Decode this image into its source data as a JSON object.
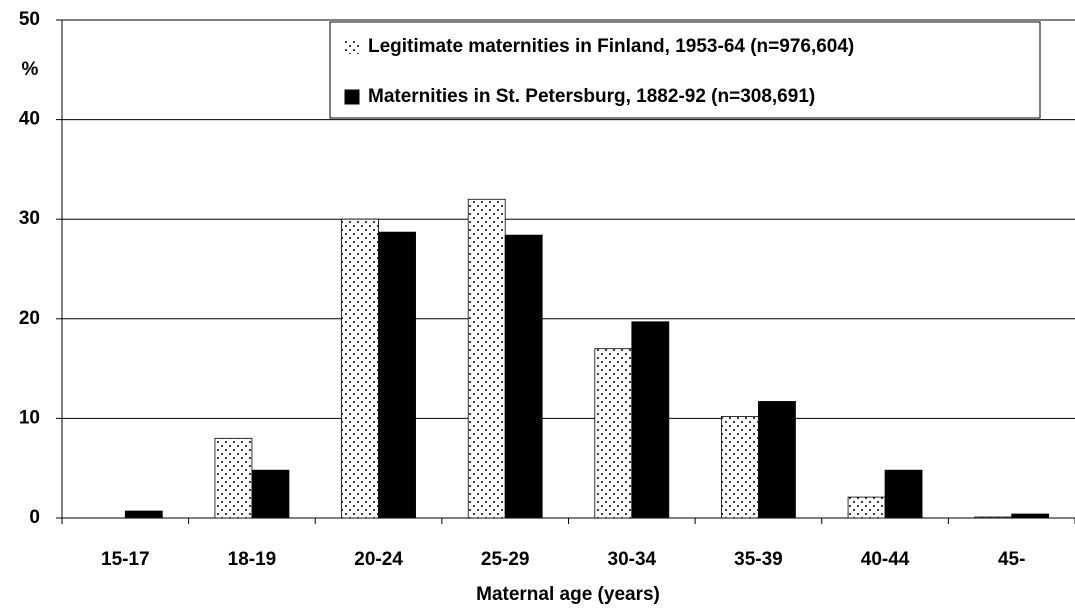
{
  "chart_data": {
    "type": "bar",
    "y_label": "%",
    "x_label": "Maternal age (years)",
    "categories": [
      "15-17",
      "18-19",
      "20-24",
      "25-29",
      "30-34",
      "35-39",
      "40-44",
      "45-"
    ],
    "series": [
      {
        "name": "Legitimate maternities in Finland, 1953-64 (n=976,604)",
        "color": "#ffffff",
        "hatch": "dots",
        "values": [
          0,
          8,
          30,
          32,
          17,
          10.2,
          2.1,
          0.1
        ]
      },
      {
        "name": "Maternities in St. Petersburg, 1882-92 (n=308,691)",
        "color": "#000000",
        "values": [
          0.7,
          4.8,
          28.7,
          28.4,
          19.7,
          11.7,
          4.8,
          0.4
        ]
      }
    ],
    "ylim": [
      0,
      50
    ],
    "yticks": [
      0,
      10,
      20,
      30,
      40,
      50
    ],
    "grid": true,
    "legend": "upper right"
  }
}
